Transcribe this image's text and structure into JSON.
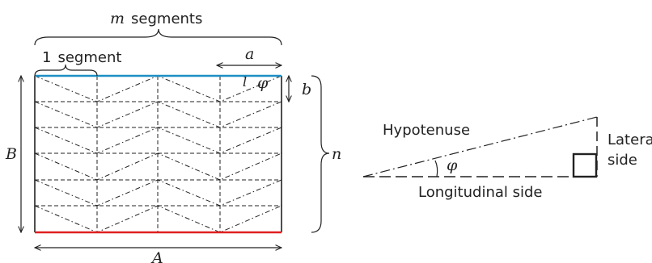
{
  "labels": {
    "m_segments_var": "m",
    "m_segments_text": "segments",
    "one_segment_num": "1",
    "one_segment_text": "segment",
    "a": "a",
    "b": "b",
    "l": "l",
    "phi": "φ",
    "B": "B",
    "n": "n",
    "A": "A"
  },
  "triangle": {
    "hypotenuse": "Hypotenuse",
    "lateral_line1": "Lateral",
    "lateral_line2": "side",
    "longitudinal": "Longitudinal side",
    "phi": "φ"
  },
  "colors": {
    "top_edge": "#1e8fc4",
    "bottom_edge": "#e02020",
    "ink": "#222222"
  }
}
